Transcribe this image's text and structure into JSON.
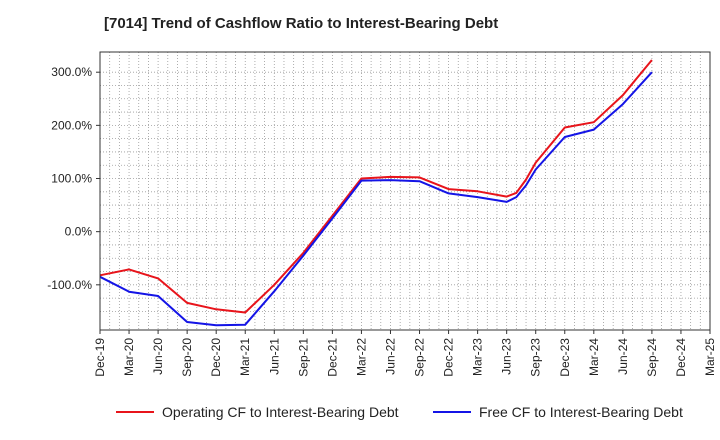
{
  "chart_data": {
    "type": "line",
    "title": "[7014]  Trend of Cashflow Ratio to Interest-Bearing Debt",
    "xlabel": "",
    "ylabel": "",
    "ylim": [
      -185,
      338
    ],
    "yticks": [
      300,
      200,
      100,
      0,
      -100
    ],
    "ytick_labels": [
      "300.0%",
      "200.0%",
      "100.0%",
      "0.0%",
      "-100.0%"
    ],
    "categories": [
      "Dec-19",
      "Mar-20",
      "Jun-20",
      "Sep-20",
      "Dec-20",
      "Mar-21",
      "Jun-21",
      "Sep-21",
      "Dec-21",
      "Mar-22",
      "Jun-22",
      "Sep-22",
      "Dec-22",
      "Mar-23",
      "Jun-23",
      "Sep-23",
      "Dec-23",
      "Mar-24",
      "Jun-24",
      "Sep-24",
      "Dec-24",
      "Mar-25"
    ],
    "grid": true,
    "legend_position": "bottom",
    "series": [
      {
        "name": "Operating CF to Interest-Bearing Debt",
        "color": "#e8141b",
        "points": [
          [
            "Dec-19",
            -82
          ],
          [
            "Mar-20",
            -71
          ],
          [
            "Jun-20",
            -88
          ],
          [
            "Sep-20",
            -134
          ],
          [
            "Dec-20",
            -146
          ],
          [
            "Mar-21",
            -152
          ],
          [
            "Jun-21",
            -100
          ],
          [
            "Sep-21",
            -40
          ],
          [
            "Dec-21",
            30
          ],
          [
            "Mar-22",
            100
          ],
          [
            "Jun-22",
            103
          ],
          [
            "Sep-22",
            102
          ],
          [
            "Dec-22",
            80
          ],
          [
            "Mar-23",
            76
          ],
          [
            "Jun-23",
            66
          ],
          [
            "Jul-23",
            73
          ],
          [
            "Aug-23",
            98
          ],
          [
            "Sep-23",
            130
          ],
          [
            "Dec-23",
            196
          ],
          [
            "Mar-24",
            206
          ],
          [
            "Jun-24",
            257
          ],
          [
            "Sep-24",
            323
          ]
        ]
      },
      {
        "name": "Free CF to Interest-Bearing Debt",
        "color": "#1414e6",
        "points": [
          [
            "Dec-19",
            -85
          ],
          [
            "Mar-20",
            -113
          ],
          [
            "Jun-20",
            -121
          ],
          [
            "Sep-20",
            -170
          ],
          [
            "Dec-20",
            -176
          ],
          [
            "Mar-21",
            -175
          ],
          [
            "Jun-21",
            -112
          ],
          [
            "Sep-21",
            -45
          ],
          [
            "Dec-21",
            25
          ],
          [
            "Mar-22",
            96
          ],
          [
            "Jun-22",
            97
          ],
          [
            "Sep-22",
            95
          ],
          [
            "Dec-22",
            72
          ],
          [
            "Mar-23",
            65
          ],
          [
            "Jun-23",
            56
          ],
          [
            "Jul-23",
            65
          ],
          [
            "Aug-23",
            87
          ],
          [
            "Sep-23",
            117
          ],
          [
            "Dec-23",
            178
          ],
          [
            "Mar-24",
            192
          ],
          [
            "Jun-24",
            240
          ],
          [
            "Sep-24",
            300
          ]
        ]
      }
    ]
  }
}
